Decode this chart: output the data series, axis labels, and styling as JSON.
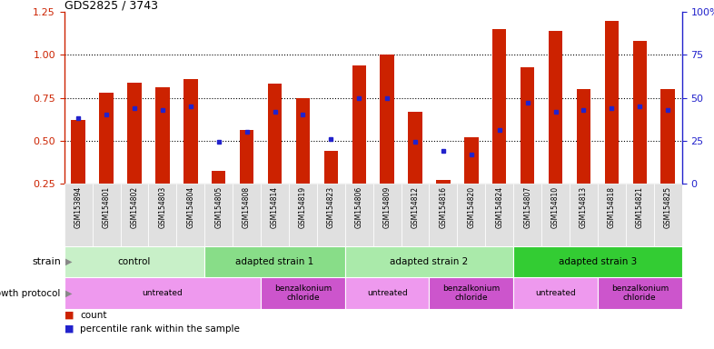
{
  "title": "GDS2825 / 3743",
  "samples": [
    "GSM153894",
    "GSM154801",
    "GSM154802",
    "GSM154803",
    "GSM154804",
    "GSM154805",
    "GSM154808",
    "GSM154814",
    "GSM154819",
    "GSM154823",
    "GSM154806",
    "GSM154809",
    "GSM154812",
    "GSM154816",
    "GSM154820",
    "GSM154824",
    "GSM154807",
    "GSM154810",
    "GSM154813",
    "GSM154818",
    "GSM154821",
    "GSM154825"
  ],
  "bar_values": [
    0.62,
    0.78,
    0.84,
    0.81,
    0.86,
    0.32,
    0.56,
    0.83,
    0.75,
    0.44,
    0.94,
    1.0,
    0.67,
    0.27,
    0.52,
    1.15,
    0.93,
    1.14,
    0.8,
    1.2,
    1.08,
    0.8
  ],
  "dot_values": [
    0.63,
    0.65,
    0.69,
    0.68,
    0.7,
    0.49,
    0.55,
    0.67,
    0.65,
    0.51,
    0.75,
    0.75,
    0.49,
    0.44,
    0.42,
    0.56,
    0.72,
    0.67,
    0.68,
    0.69,
    0.7,
    0.68
  ],
  "bar_color": "#CC2200",
  "dot_color": "#2222CC",
  "ylim_left": [
    0.25,
    1.25
  ],
  "ylim_right": [
    0,
    100
  ],
  "yticks_left": [
    0.25,
    0.5,
    0.75,
    1.0,
    1.25
  ],
  "yticks_right": [
    0,
    25,
    50,
    75,
    100
  ],
  "ytick_labels_right": [
    "0",
    "25",
    "50",
    "75",
    "100%"
  ],
  "strain_groups": [
    {
      "label": "control",
      "start": 0,
      "end": 5,
      "color": "#c8f0c8"
    },
    {
      "label": "adapted strain 1",
      "start": 5,
      "end": 10,
      "color": "#88dd88"
    },
    {
      "label": "adapted strain 2",
      "start": 10,
      "end": 16,
      "color": "#aaeaaa"
    },
    {
      "label": "adapted strain 3",
      "start": 16,
      "end": 22,
      "color": "#33cc33"
    }
  ],
  "growth_groups": [
    {
      "label": "untreated",
      "start": 0,
      "end": 7,
      "color": "#ee99ee"
    },
    {
      "label": "benzalkonium\nchloride",
      "start": 7,
      "end": 10,
      "color": "#cc55cc"
    },
    {
      "label": "untreated",
      "start": 10,
      "end": 13,
      "color": "#ee99ee"
    },
    {
      "label": "benzalkonium\nchloride",
      "start": 13,
      "end": 16,
      "color": "#cc55cc"
    },
    {
      "label": "untreated",
      "start": 16,
      "end": 19,
      "color": "#ee99ee"
    },
    {
      "label": "benzalkonium\nchloride",
      "start": 19,
      "end": 22,
      "color": "#cc55cc"
    }
  ],
  "legend_items": [
    {
      "label": "count",
      "color": "#CC2200"
    },
    {
      "label": "percentile rank within the sample",
      "color": "#2222CC"
    }
  ],
  "xtick_bg": "#dddddd",
  "bar_bottom": 0.25
}
